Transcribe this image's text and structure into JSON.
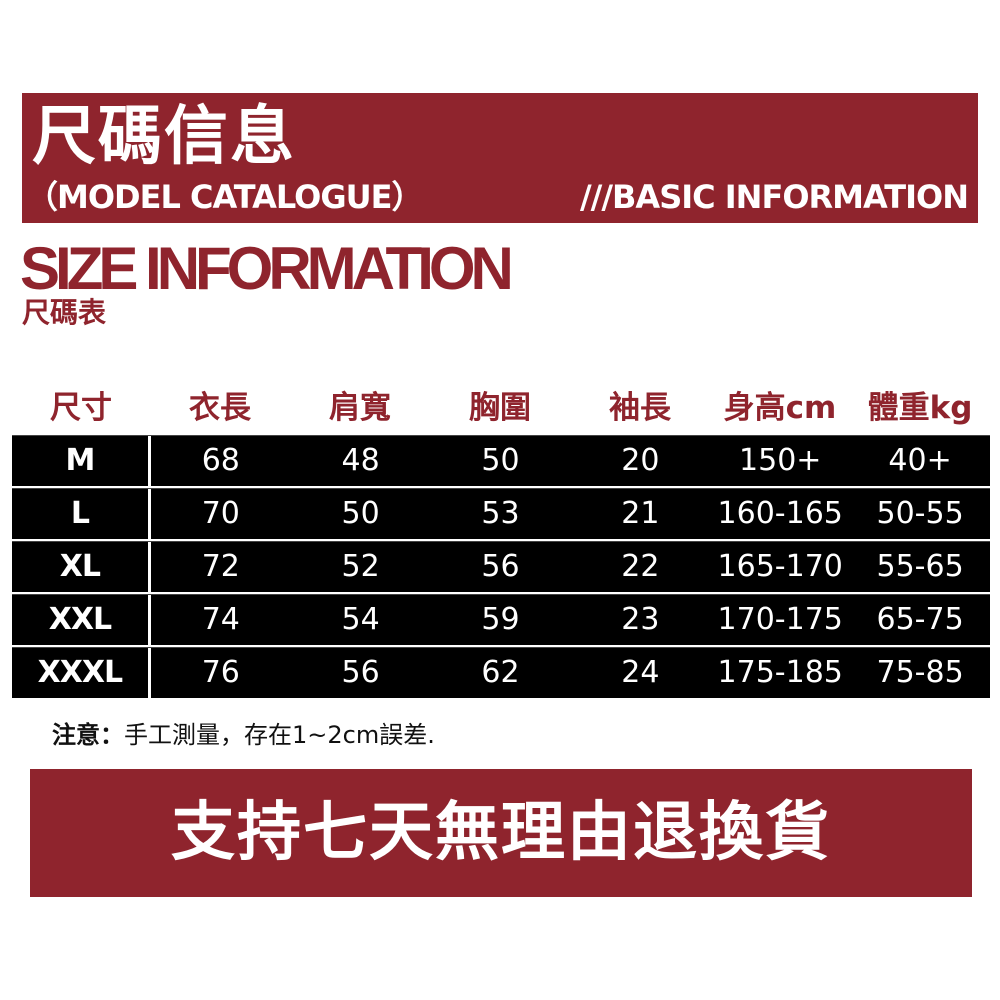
{
  "banner": {
    "title": "尺碼信息",
    "subtitle_left": "（MODEL CATALOGUE）",
    "subtitle_right": "///BASIC INFORMATION",
    "color": "#8f242d"
  },
  "heading": {
    "title": "SIZE INFORMATION",
    "subtitle": "尺碼表"
  },
  "table": {
    "headers": [
      "尺寸",
      "衣長",
      "肩寬",
      "胸圍",
      "袖長",
      "身高cm",
      "體重kg"
    ],
    "rows": [
      [
        "M",
        "68",
        "48",
        "50",
        "20",
        "150+",
        "40+"
      ],
      [
        "L",
        "70",
        "50",
        "53",
        "21",
        "160-165",
        "50-55"
      ],
      [
        "XL",
        "72",
        "52",
        "56",
        "22",
        "165-170",
        "55-65"
      ],
      [
        "XXL",
        "74",
        "54",
        "59",
        "23",
        "170-175",
        "65-75"
      ],
      [
        "XXXL",
        "76",
        "56",
        "62",
        "24",
        "175-185",
        "75-85"
      ]
    ]
  },
  "note": {
    "label": "注意：",
    "text": "手工測量，存在1~2cm誤差."
  },
  "footer_banner": "支持七天無理由退換貨"
}
